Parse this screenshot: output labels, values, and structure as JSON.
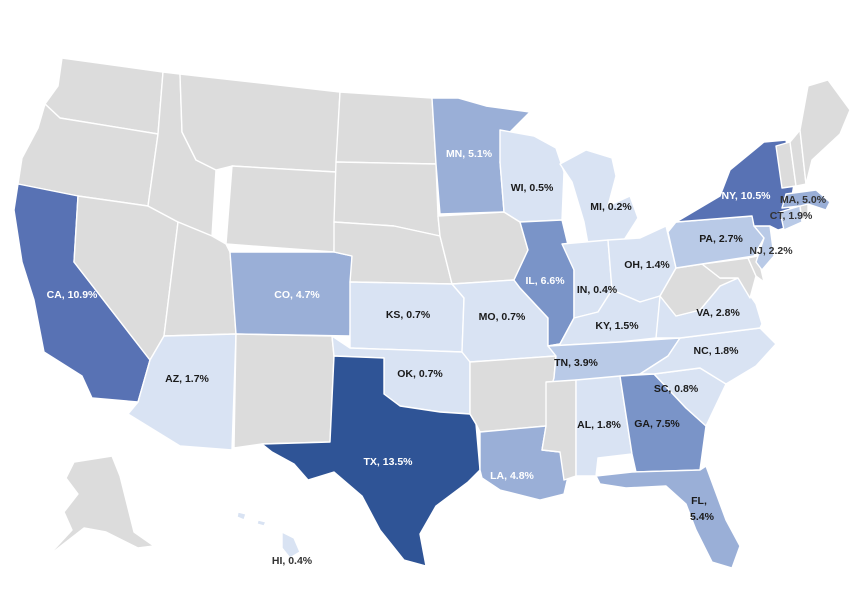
{
  "map": {
    "colors": {
      "none": "#dcdcdc",
      "low": "#d9e3f3",
      "mid_low": "#b9cae7",
      "mid": "#9aafd7",
      "mid_high": "#7a94c8",
      "high": "#5872b4",
      "top": "#2f5496"
    },
    "states": [
      {
        "code": "CA",
        "label": "CA, 10.9%",
        "value": 10.9,
        "shade": "high",
        "text_color": "#ffffff"
      },
      {
        "code": "TX",
        "label": "TX, 13.5%",
        "value": 13.5,
        "shade": "top",
        "text_color": "#ffffff"
      },
      {
        "code": "NY",
        "label": "NY, 10.5%",
        "value": 10.5,
        "shade": "high",
        "text_color": "#ffffff"
      },
      {
        "code": "GA",
        "label": "GA, 7.5%",
        "value": 7.5,
        "shade": "mid_high",
        "text_color": "#1a1a1a"
      },
      {
        "code": "IL",
        "label": "IL, 6.6%",
        "value": 6.6,
        "shade": "mid_high",
        "text_color": "#ffffff"
      },
      {
        "code": "FL",
        "label": "FL,",
        "label2": "5.4%",
        "value": 5.4,
        "shade": "mid",
        "text_color": "#1a1a1a"
      },
      {
        "code": "MN",
        "label": "MN, 5.1%",
        "value": 5.1,
        "shade": "mid",
        "text_color": "#ffffff"
      },
      {
        "code": "MA",
        "label": "MA, 5.0%",
        "value": 5.0,
        "shade": "mid",
        "text_color": "#333333"
      },
      {
        "code": "LA",
        "label": "LA, 4.8%",
        "value": 4.8,
        "shade": "mid",
        "text_color": "#ffffff"
      },
      {
        "code": "CO",
        "label": "CO, 4.7%",
        "value": 4.7,
        "shade": "mid",
        "text_color": "#ffffff"
      },
      {
        "code": "TN",
        "label": "TN, 3.9%",
        "value": 3.9,
        "shade": "mid_low",
        "text_color": "#1a1a1a"
      },
      {
        "code": "VA",
        "label": "VA, 2.8%",
        "value": 2.8,
        "shade": "low",
        "text_color": "#1a1a1a"
      },
      {
        "code": "PA",
        "label": "PA, 2.7%",
        "value": 2.7,
        "shade": "mid_low",
        "text_color": "#1a1a1a"
      },
      {
        "code": "NJ",
        "label": "NJ, 2.2%",
        "value": 2.2,
        "shade": "mid_low",
        "text_color": "#333333"
      },
      {
        "code": "CT",
        "label": "CT, 1.9%",
        "value": 1.9,
        "shade": "mid_low",
        "text_color": "#333333"
      },
      {
        "code": "AL",
        "label": "AL, 1.8%",
        "value": 1.8,
        "shade": "low",
        "text_color": "#1a1a1a"
      },
      {
        "code": "NC",
        "label": "NC, 1.8%",
        "value": 1.8,
        "shade": "low",
        "text_color": "#1a1a1a"
      },
      {
        "code": "AZ",
        "label": "AZ, 1.7%",
        "value": 1.7,
        "shade": "low",
        "text_color": "#1a1a1a"
      },
      {
        "code": "KY",
        "label": "KY, 1.5%",
        "value": 1.5,
        "shade": "low",
        "text_color": "#1a1a1a"
      },
      {
        "code": "OH",
        "label": "OH, 1.4%",
        "value": 1.4,
        "shade": "low",
        "text_color": "#1a1a1a"
      },
      {
        "code": "SC",
        "label": "SC, 0.8%",
        "value": 0.8,
        "shade": "low",
        "text_color": "#1a1a1a"
      },
      {
        "code": "KS",
        "label": "KS, 0.7%",
        "value": 0.7,
        "shade": "low",
        "text_color": "#1a1a1a"
      },
      {
        "code": "MO",
        "label": "MO, 0.7%",
        "value": 0.7,
        "shade": "low",
        "text_color": "#1a1a1a"
      },
      {
        "code": "OK",
        "label": "OK, 0.7%",
        "value": 0.7,
        "shade": "low",
        "text_color": "#1a1a1a"
      },
      {
        "code": "WI",
        "label": "WI, 0.5%",
        "value": 0.5,
        "shade": "low",
        "text_color": "#1a1a1a"
      },
      {
        "code": "IN",
        "label": "IN, 0.4%",
        "value": 0.4,
        "shade": "low",
        "text_color": "#1a1a1a"
      },
      {
        "code": "HI",
        "label": "HI, 0.4%",
        "value": 0.4,
        "shade": "low",
        "text_color": "#333333"
      },
      {
        "code": "MI",
        "label": "MI, 0.2%",
        "value": 0.2,
        "shade": "low",
        "text_color": "#1a1a1a"
      }
    ]
  }
}
